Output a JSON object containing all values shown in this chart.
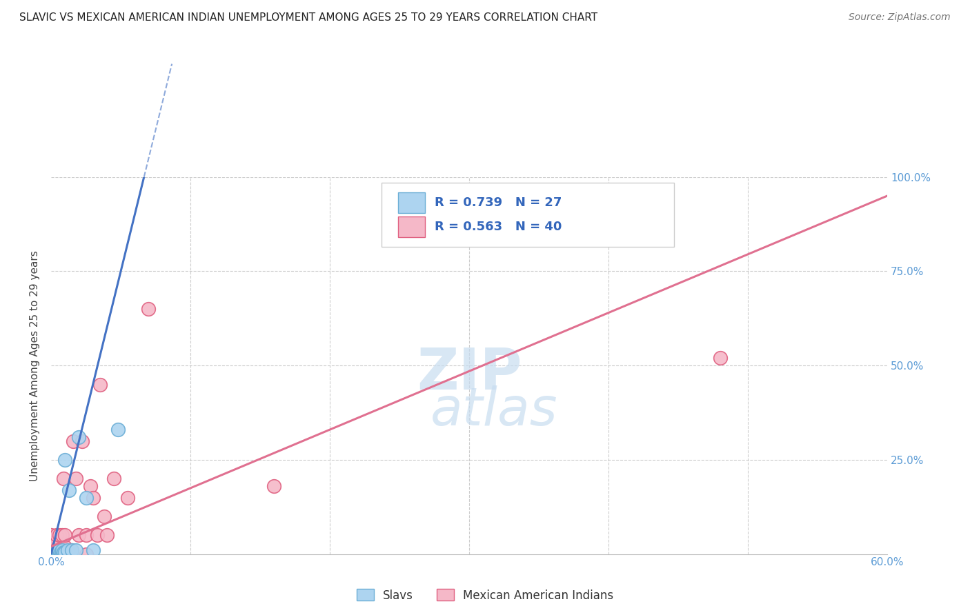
{
  "title": "SLAVIC VS MEXICAN AMERICAN INDIAN UNEMPLOYMENT AMONG AGES 25 TO 29 YEARS CORRELATION CHART",
  "source": "Source: ZipAtlas.com",
  "ylabel": "Unemployment Among Ages 25 to 29 years",
  "xlim": [
    0.0,
    0.6
  ],
  "ylim": [
    0.0,
    1.0
  ],
  "slavs_R": 0.739,
  "slavs_N": 27,
  "mexican_R": 0.563,
  "mexican_N": 40,
  "slavs_color": "#add4f0",
  "mexican_color": "#f5b8c8",
  "slavs_edge_color": "#6baed6",
  "mexican_edge_color": "#e06080",
  "slavs_line_color": "#4472c4",
  "mexican_line_color": "#e07090",
  "slavs_trend_slope": 15.0,
  "slavs_trend_intercept": 0.0,
  "mexican_trend_slope": 1.55,
  "mexican_trend_intercept": 0.02,
  "slavs_x": [
    0.0,
    0.0,
    0.0,
    0.0,
    0.0,
    0.003,
    0.003,
    0.004,
    0.004,
    0.005,
    0.005,
    0.006,
    0.006,
    0.007,
    0.008,
    0.008,
    0.009,
    0.01,
    0.01,
    0.012,
    0.013,
    0.015,
    0.018,
    0.02,
    0.025,
    0.03,
    0.048
  ],
  "slavs_y": [
    0.0,
    0.0,
    0.001,
    0.002,
    0.003,
    0.0,
    0.002,
    0.003,
    0.005,
    0.002,
    0.005,
    0.003,
    0.01,
    0.005,
    0.003,
    0.01,
    0.005,
    0.005,
    0.25,
    0.01,
    0.17,
    0.01,
    0.01,
    0.31,
    0.15,
    0.01,
    0.33
  ],
  "mexican_x": [
    0.0,
    0.0,
    0.0,
    0.0,
    0.0,
    0.002,
    0.002,
    0.003,
    0.004,
    0.004,
    0.005,
    0.005,
    0.006,
    0.006,
    0.007,
    0.008,
    0.009,
    0.01,
    0.01,
    0.01,
    0.012,
    0.014,
    0.015,
    0.016,
    0.018,
    0.02,
    0.022,
    0.025,
    0.025,
    0.028,
    0.03,
    0.033,
    0.035,
    0.038,
    0.04,
    0.045,
    0.055,
    0.07,
    0.16,
    0.48
  ],
  "mexican_y": [
    0.0,
    0.0,
    0.001,
    0.002,
    0.05,
    0.0,
    0.03,
    0.0,
    0.002,
    0.05,
    0.0,
    0.02,
    0.0,
    0.05,
    0.0,
    0.05,
    0.2,
    0.0,
    0.02,
    0.05,
    0.0,
    0.0,
    0.01,
    0.3,
    0.2,
    0.05,
    0.3,
    0.0,
    0.05,
    0.18,
    0.15,
    0.05,
    0.45,
    0.1,
    0.05,
    0.2,
    0.15,
    0.65,
    0.18,
    0.52
  ],
  "grid_color": "#cccccc",
  "tick_color": "#5b9bd5",
  "watermark_color": "#c8ddf0"
}
